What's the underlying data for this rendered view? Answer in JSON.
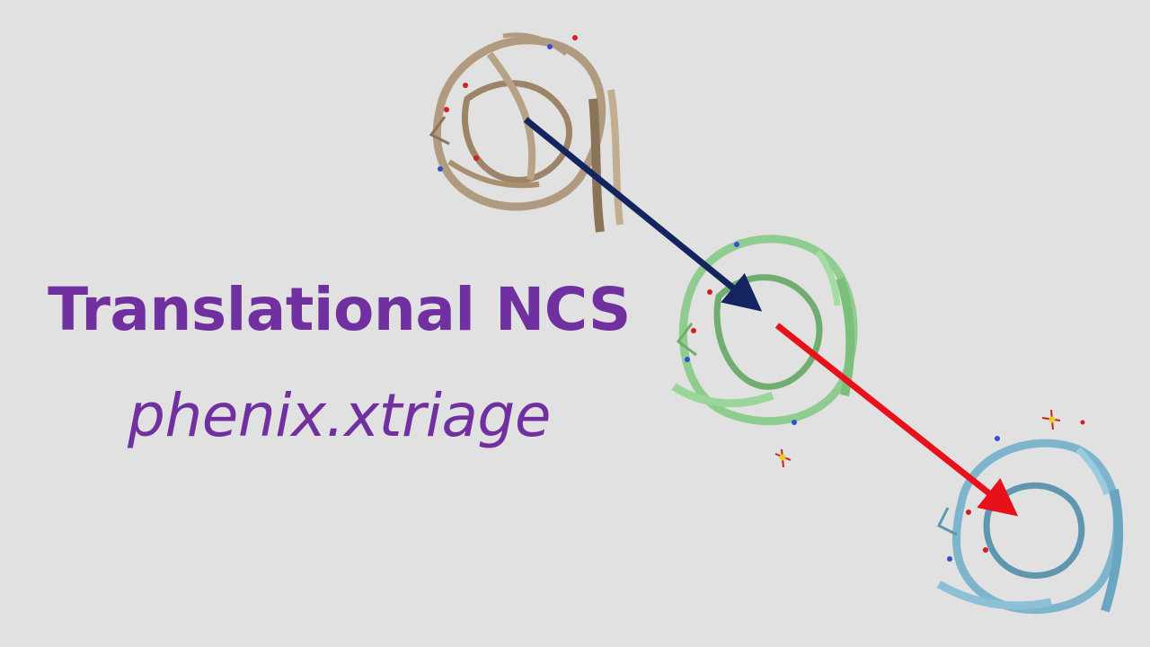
{
  "title": "Translational NCS",
  "subtitle": "phenix.xtriage",
  "colors": {
    "background": "#e1e1e1",
    "text": "#7030a0",
    "arrow_first": "#13245f",
    "arrow_second": "#e8101a",
    "molecule_1": "#b09a80",
    "molecule_2": "#8fcc8f",
    "molecule_3": "#7fb5cc"
  },
  "molecules": [
    {
      "name": "molecule-copy-1",
      "color_key": "molecule_1"
    },
    {
      "name": "molecule-copy-2",
      "color_key": "molecule_2"
    },
    {
      "name": "molecule-copy-3",
      "color_key": "molecule_3"
    }
  ]
}
